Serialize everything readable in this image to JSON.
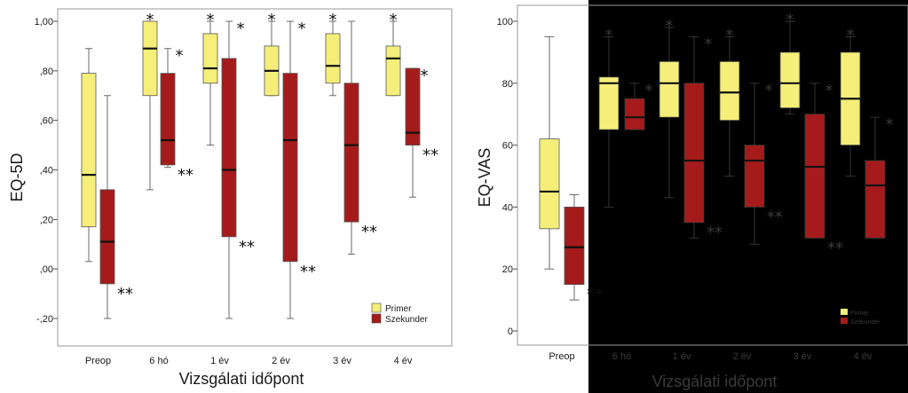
{
  "colors": {
    "primer": "#f5ef7a",
    "szekunder": "#a51b1b",
    "dark_overlay": "#000000"
  },
  "chart_data": [
    {
      "type": "boxplot",
      "ylabel": "EQ-5D",
      "xlabel": "Vizsgálati időpont",
      "categories": [
        "Preop",
        "6 hó",
        "1 év",
        "2 év",
        "3 év",
        "4 év"
      ],
      "yticks": [
        {
          "value": -0.2,
          "label": "-,20"
        },
        {
          "value": 0.0,
          "label": ",00"
        },
        {
          "value": 0.2,
          "label": ",20"
        },
        {
          "value": 0.4,
          "label": ",40"
        },
        {
          "value": 0.6,
          "label": ",60"
        },
        {
          "value": 0.8,
          "label": ",80"
        },
        {
          "value": 1.0,
          "label": "1,00"
        }
      ],
      "ylim": [
        -0.27,
        1.07
      ],
      "legend": {
        "placement": "bottom-right",
        "entries": [
          "Primer",
          "Szekunder"
        ]
      },
      "series": [
        {
          "name": "Primer",
          "boxes": [
            {
              "min": 0.03,
              "q1": 0.17,
              "median": 0.38,
              "q3": 0.79,
              "max": 0.89,
              "marker": ""
            },
            {
              "min": 0.32,
              "q1": 0.7,
              "median": 0.89,
              "q3": 1.0,
              "max": 1.0,
              "marker": "*"
            },
            {
              "min": 0.5,
              "q1": 0.75,
              "median": 0.81,
              "q3": 0.95,
              "max": 1.0,
              "marker": "*"
            },
            {
              "min": 0.7,
              "q1": 0.7,
              "median": 0.8,
              "q3": 0.9,
              "max": 1.0,
              "marker": "*"
            },
            {
              "min": 0.7,
              "q1": 0.75,
              "median": 0.82,
              "q3": 0.95,
              "max": 1.0,
              "marker": "*"
            },
            {
              "min": 0.7,
              "q1": 0.7,
              "median": 0.85,
              "q3": 0.9,
              "max": 1.0,
              "marker": "*"
            }
          ]
        },
        {
          "name": "Szekunder",
          "boxes": [
            {
              "min": -0.2,
              "q1": -0.06,
              "median": 0.11,
              "q3": 0.32,
              "max": 0.7,
              "marker": "**"
            },
            {
              "min": 0.41,
              "q1": 0.42,
              "median": 0.52,
              "q3": 0.79,
              "max": 0.89,
              "marker": "*|**"
            },
            {
              "min": -0.2,
              "q1": 0.13,
              "median": 0.4,
              "q3": 0.85,
              "max": 1.0,
              "marker": "*|**"
            },
            {
              "min": -0.2,
              "q1": 0.03,
              "median": 0.52,
              "q3": 0.79,
              "max": 1.0,
              "marker": "*|**"
            },
            {
              "min": 0.06,
              "q1": 0.19,
              "median": 0.5,
              "q3": 0.75,
              "max": 1.0,
              "marker": "**"
            },
            {
              "min": 0.29,
              "q1": 0.5,
              "median": 0.55,
              "q3": 0.81,
              "max": 0.81,
              "marker": "*|**"
            }
          ]
        }
      ]
    },
    {
      "type": "boxplot",
      "ylabel": "EQ-VAS",
      "xlabel": "Vizsgálati időpont",
      "categories": [
        "Preop",
        "6 hó",
        "1 év",
        "2 év",
        "3 év",
        "4 év"
      ],
      "yticks": [
        {
          "value": 0,
          "label": "0"
        },
        {
          "value": 20,
          "label": "20"
        },
        {
          "value": 40,
          "label": "40"
        },
        {
          "value": 60,
          "label": "60"
        },
        {
          "value": 80,
          "label": "80"
        },
        {
          "value": 100,
          "label": "100"
        }
      ],
      "ylim": [
        -4,
        105
      ],
      "legend": {
        "placement": "bottom-right",
        "entries": [
          "Primer",
          "Szekunder"
        ]
      },
      "series": [
        {
          "name": "Primer",
          "boxes": [
            {
              "min": 20,
              "q1": 33,
              "median": 45,
              "q3": 62,
              "max": 95,
              "marker": ""
            },
            {
              "min": 40,
              "q1": 65,
              "median": 80,
              "q3": 82,
              "max": 95,
              "marker": "*"
            },
            {
              "min": 43,
              "q1": 69,
              "median": 80,
              "q3": 87,
              "max": 98,
              "marker": "*"
            },
            {
              "min": 50,
              "q1": 68,
              "median": 77,
              "q3": 87,
              "max": 95,
              "marker": "*"
            },
            {
              "min": 70,
              "q1": 72,
              "median": 80,
              "q3": 90,
              "max": 100,
              "marker": "*"
            },
            {
              "min": 50,
              "q1": 60,
              "median": 75,
              "q3": 90,
              "max": 95,
              "marker": "*"
            }
          ]
        },
        {
          "name": "Szekunder",
          "boxes": [
            {
              "min": 10,
              "q1": 15,
              "median": 27,
              "q3": 40,
              "max": 44,
              "marker": "**"
            },
            {
              "min": 65,
              "q1": 65,
              "median": 69,
              "q3": 75,
              "max": 80,
              "marker": "*"
            },
            {
              "min": 30,
              "q1": 35,
              "median": 55,
              "q3": 80,
              "max": 95,
              "marker": "*|**"
            },
            {
              "min": 28,
              "q1": 40,
              "median": 55,
              "q3": 60,
              "max": 80,
              "marker": "*|**"
            },
            {
              "min": 30,
              "q1": 30,
              "median": 53,
              "q3": 70,
              "max": 80,
              "marker": "*|**"
            },
            {
              "min": 30,
              "q1": 30,
              "median": 47,
              "q3": 55,
              "max": 69,
              "marker": "*"
            }
          ]
        }
      ]
    }
  ]
}
